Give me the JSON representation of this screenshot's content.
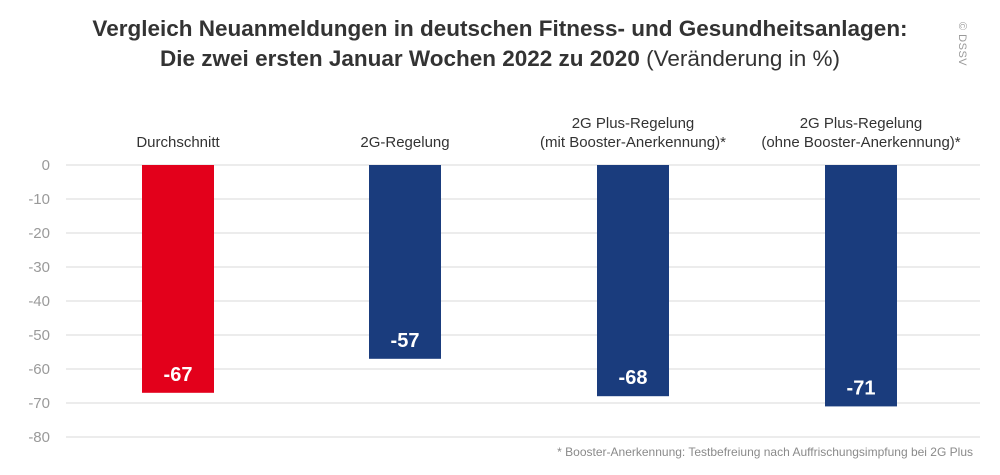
{
  "title": {
    "line1": "Vergleich Neuanmeldungen in deutschen Fitness- und Gesundheitsanlagen:",
    "line2_bold": "Die zwei ersten Januar Wochen 2022 zu 2020",
    "line2_normal": "(Veränderung in %)"
  },
  "copyright": "© DSSV",
  "footnote": "* Booster-Anerkennung: Testbefreiung nach Auffrischungsimpfung bei 2G Plus",
  "colors": {
    "red": "#e3001b",
    "blue": "#1a3c7d",
    "grid": "#d9d9d9",
    "tick": "#9a9a9a"
  },
  "chart_data": {
    "type": "bar",
    "categories": [
      [
        "Durchschnitt"
      ],
      [
        "2G-Regelung"
      ],
      [
        "2G Plus-Regelung",
        "(mit Booster-Anerkennung)*"
      ],
      [
        "2G Plus-Regelung",
        "(ohne Booster-Anerkennung)*"
      ]
    ],
    "values": [
      -67,
      -57,
      -68,
      -71
    ],
    "data_labels": [
      "-67",
      "-57",
      "-68",
      "-71"
    ],
    "bar_colors": [
      "#e3001b",
      "#1a3c7d",
      "#1a3c7d",
      "#1a3c7d"
    ],
    "ylim": [
      -80,
      0
    ],
    "yticks": [
      0,
      -10,
      -20,
      -30,
      -40,
      -50,
      -60,
      -70,
      -80
    ],
    "grid": true,
    "xlabel": "",
    "ylabel": ""
  }
}
